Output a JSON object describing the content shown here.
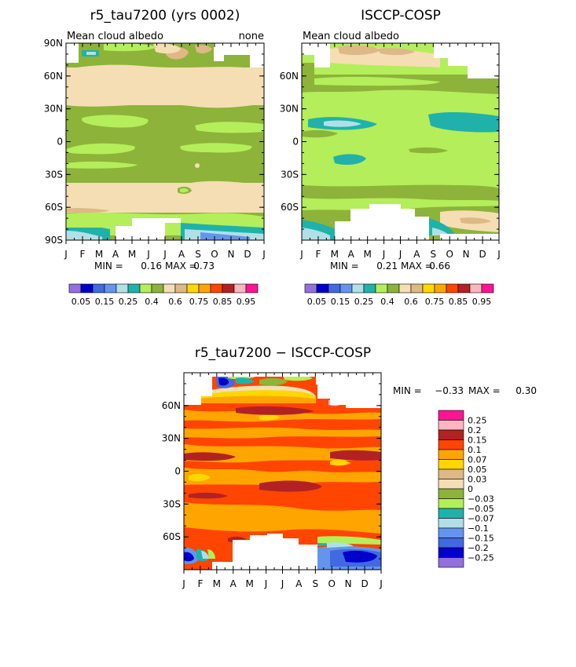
{
  "chart_data": [
    {
      "type": "heatmap",
      "title": "r5_tau7200 (yrs 0002)",
      "left_label": "Mean cloud albedo",
      "right_label": "none",
      "x_ticks": [
        "J",
        "F",
        "M",
        "A",
        "M",
        "J",
        "J",
        "A",
        "S",
        "O",
        "N",
        "D",
        "J"
      ],
      "y_ticks": [
        "90N",
        "60N",
        "30N",
        "0",
        "30S",
        "60S",
        "90S"
      ],
      "ylim": [
        -90,
        90
      ],
      "stats": {
        "min_label": "MIN =",
        "min": "0.16",
        "max_label": "MAX =",
        "max": "0.73"
      },
      "colorbar": {
        "colors": [
          "#9370db",
          "#0000cd",
          "#4169e1",
          "#6495ed",
          "#b0e0e6",
          "#20b2aa",
          "#b4ee5a",
          "#8db33a",
          "#f5deb3",
          "#deb887",
          "#ffd700",
          "#ffa500",
          "#ff4500",
          "#b22222",
          "#ffb6c1",
          "#ff1493"
        ],
        "labels": [
          "0.05",
          "0.15",
          "0.25",
          "0.4",
          "0.6",
          "0.75",
          "0.85",
          "0.95"
        ]
      }
    },
    {
      "type": "heatmap",
      "title": "ISCCP-COSP",
      "left_label": "Mean cloud albedo",
      "x_ticks": [
        "J",
        "F",
        "M",
        "A",
        "M",
        "J",
        "J",
        "A",
        "S",
        "O",
        "N",
        "D",
        "J"
      ],
      "y_ticks": [
        "60N",
        "30N",
        "0",
        "30S",
        "60S"
      ],
      "ylim": [
        -90,
        90
      ],
      "stats": {
        "min_label": "MIN =",
        "min": "0.21",
        "max_label": "MAX =",
        "max": "0.66"
      },
      "colorbar": {
        "colors": [
          "#9370db",
          "#0000cd",
          "#4169e1",
          "#6495ed",
          "#b0e0e6",
          "#20b2aa",
          "#b4ee5a",
          "#8db33a",
          "#f5deb3",
          "#deb887",
          "#ffd700",
          "#ffa500",
          "#ff4500",
          "#b22222",
          "#ffb6c1",
          "#ff1493"
        ],
        "labels": [
          "0.05",
          "0.15",
          "0.25",
          "0.4",
          "0.6",
          "0.75",
          "0.85",
          "0.95"
        ]
      }
    },
    {
      "type": "heatmap",
      "title": "r5_tau7200 − ISCCP-COSP",
      "x_ticks": [
        "J",
        "F",
        "M",
        "A",
        "M",
        "J",
        "J",
        "A",
        "S",
        "O",
        "N",
        "D",
        "J"
      ],
      "y_ticks": [
        "60N",
        "30N",
        "0",
        "30S",
        "60S"
      ],
      "ylim": [
        -90,
        90
      ],
      "stats": {
        "min_label": "MIN =",
        "min": "−0.33",
        "max_label": "MAX =",
        "max": "0.30"
      },
      "colorbar": {
        "colors": [
          "#ff1493",
          "#ffb6c1",
          "#b22222",
          "#ff4500",
          "#ffa500",
          "#ffd700",
          "#deb887",
          "#f5deb3",
          "#8db33a",
          "#b4ee5a",
          "#20b2aa",
          "#b0e0e6",
          "#6495ed",
          "#4169e1",
          "#0000cd",
          "#9370db"
        ],
        "labels": [
          "0.25",
          "0.2",
          "0.15",
          "0.1",
          "0.07",
          "0.05",
          "0.03",
          "0",
          "−0.03",
          "−0.05",
          "−0.07",
          "−0.1",
          "−0.15",
          "−0.2",
          "−0.25"
        ]
      }
    }
  ]
}
